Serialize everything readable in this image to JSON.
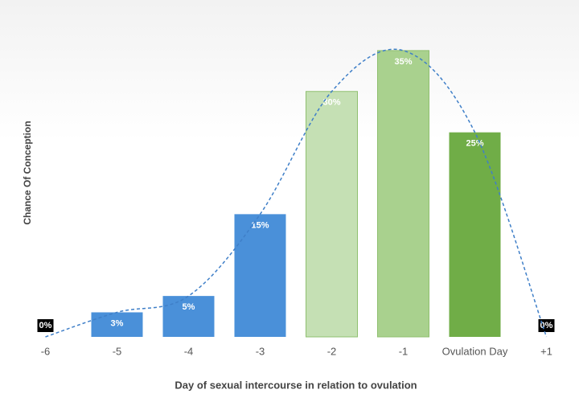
{
  "chart_data": {
    "type": "bar",
    "x_label": "Day of sexual intercourse in relation to ovulation",
    "y_label": "Chance Of Conception",
    "categories": [
      "-6",
      "-5",
      "-4",
      "-3",
      "-2",
      "-1",
      "Ovulation Day",
      "+1"
    ],
    "values": [
      0,
      3,
      5,
      15,
      30,
      35,
      25,
      0
    ],
    "value_labels": [
      "0%",
      "3%",
      "5%",
      "15%",
      "30%",
      "35%",
      "25%",
      "0%"
    ],
    "colors": [
      "#000000",
      "#4a90d9",
      "#4a90d9",
      "#4a90d9",
      "#c5e0b4",
      "#a9d18e",
      "#70ad47",
      "#000000"
    ],
    "trend_color": "#3f7fc8",
    "ylim": [
      0,
      40
    ]
  }
}
